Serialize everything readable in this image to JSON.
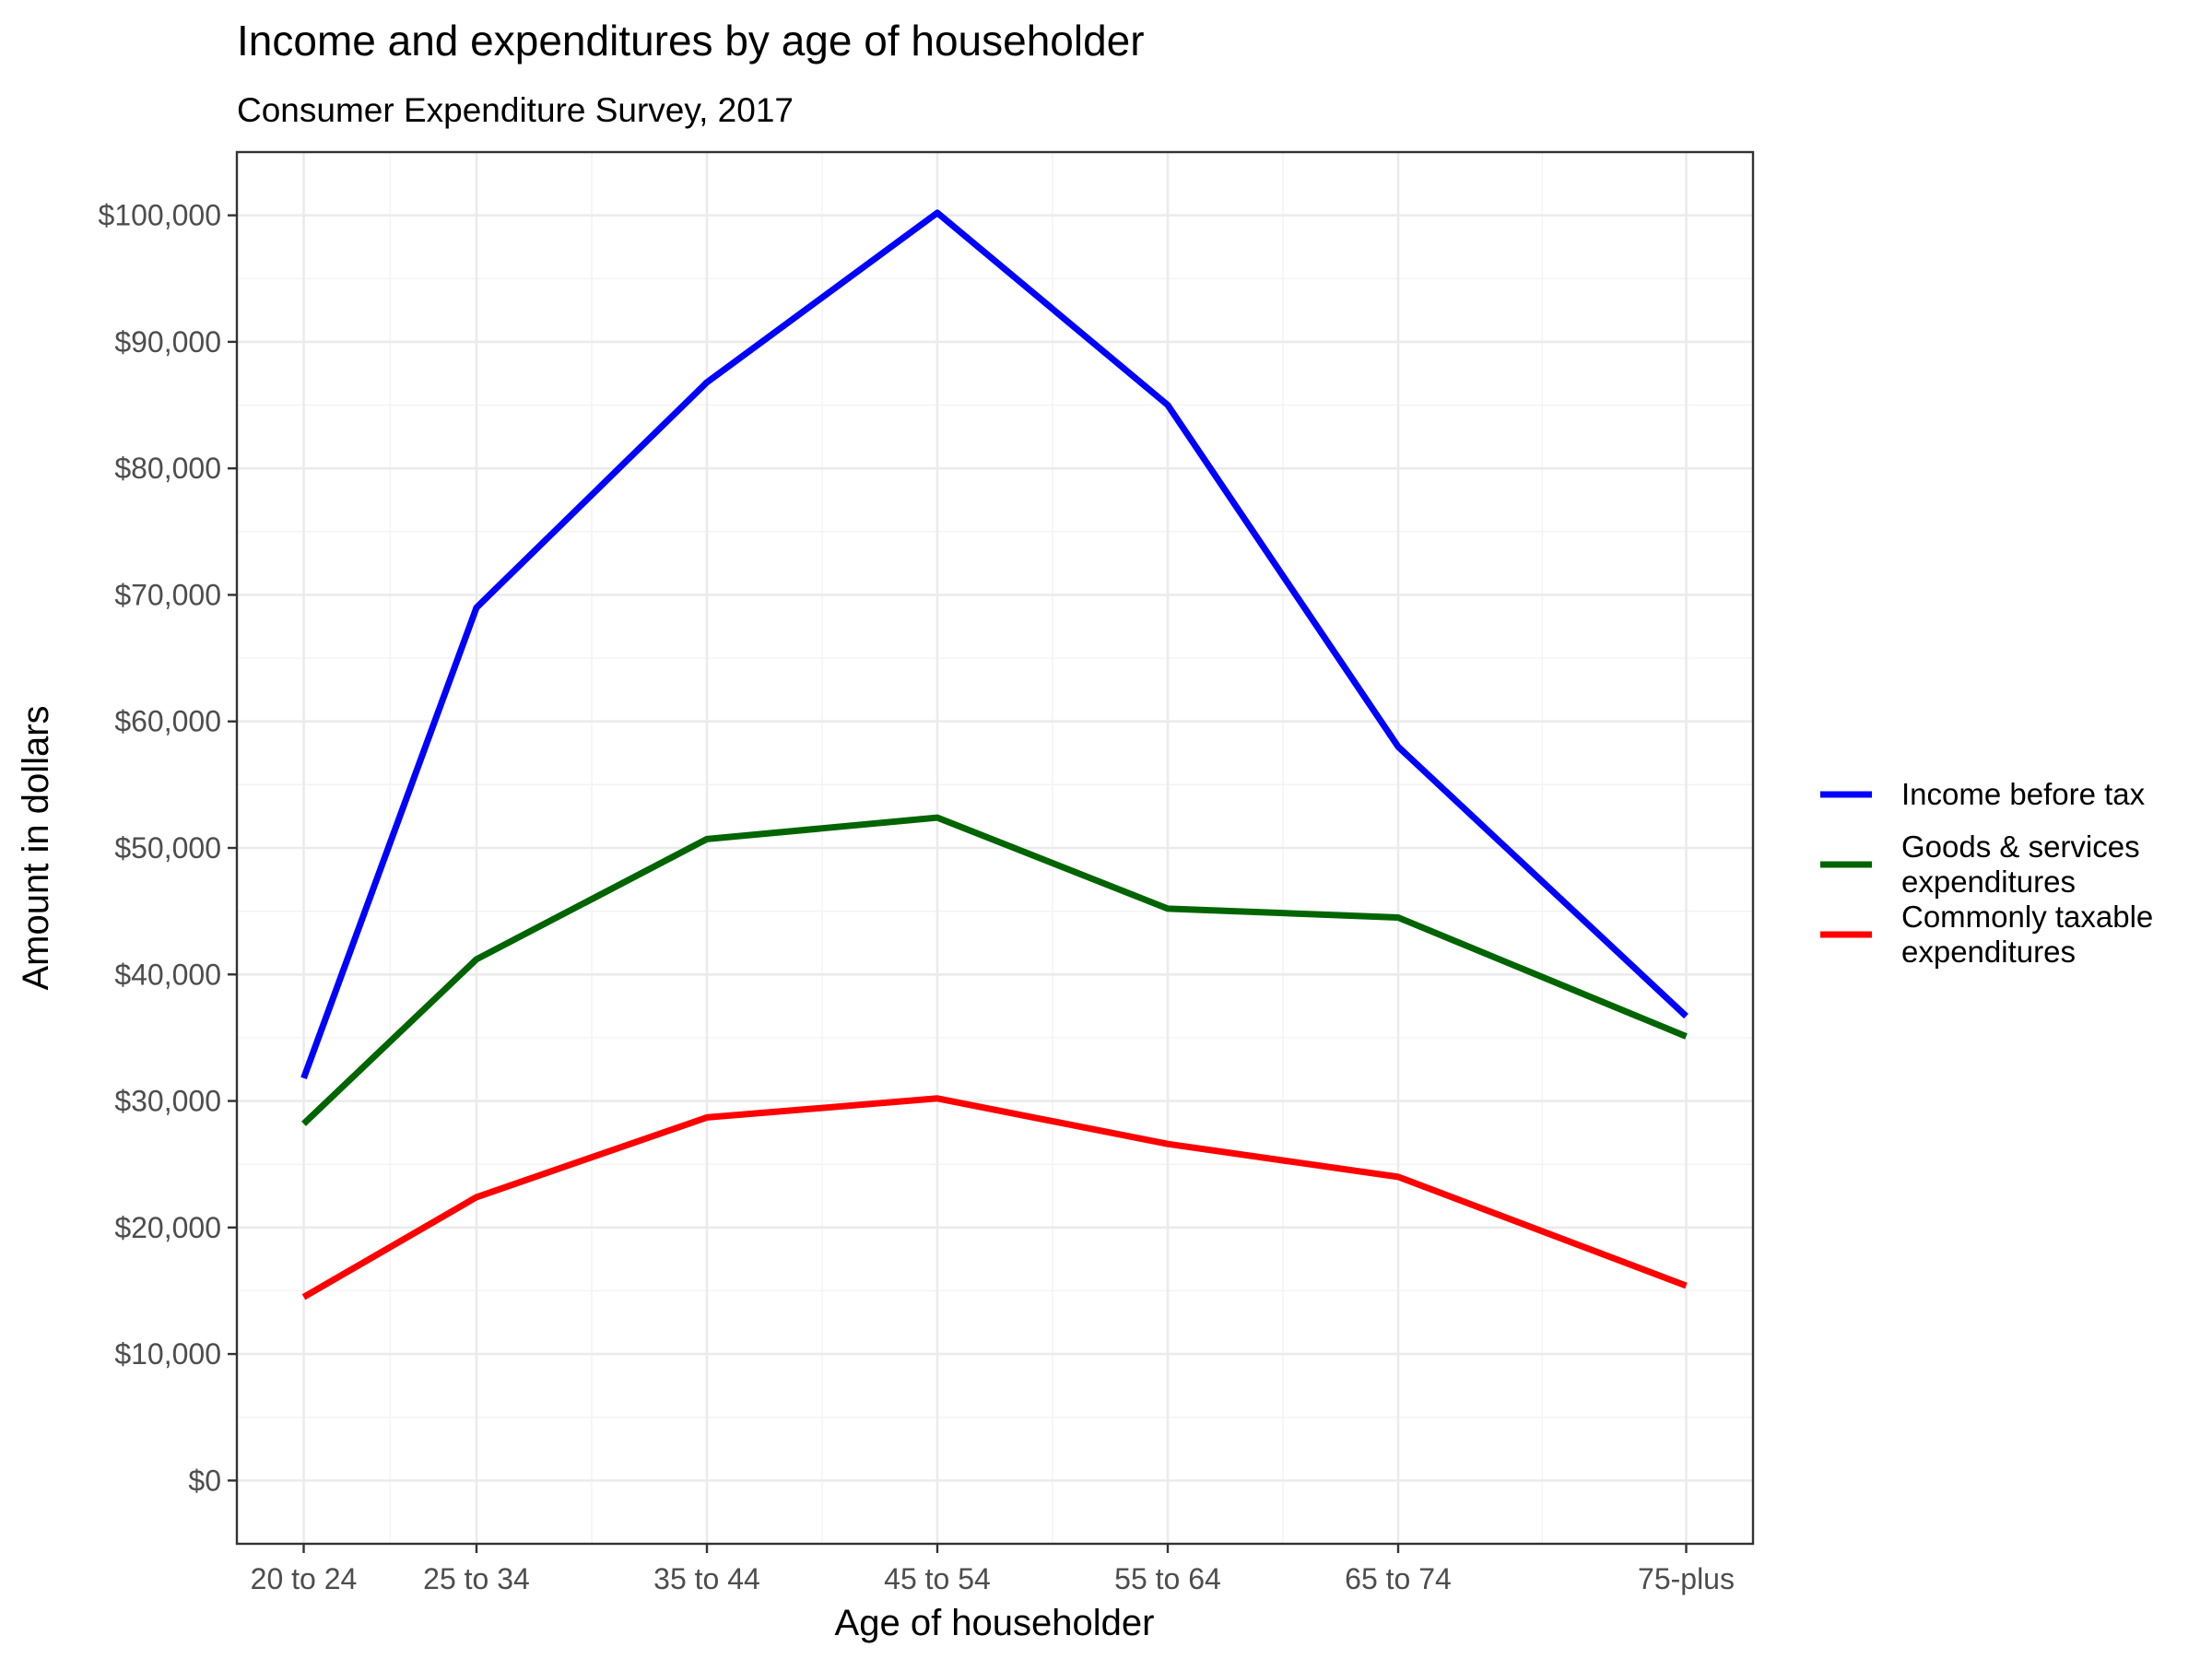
{
  "chart_data": {
    "type": "line",
    "title": "Income and expenditures by age of householder",
    "subtitle": "Consumer Expenditure Survey, 2017",
    "xlabel": "Age of householder",
    "ylabel": "Amount in dollars",
    "categories": [
      "20 to 24",
      "25 to 34",
      "35 to 44",
      "45 to 54",
      "55 to 64",
      "65 to 74",
      "75-plus"
    ],
    "x_positions": [
      22,
      29.5,
      39.5,
      49.5,
      59.5,
      69.5,
      82
    ],
    "x_range": [
      19.1,
      84.9
    ],
    "ylim": [
      -5000,
      105000
    ],
    "y_ticks": [
      0,
      10000,
      20000,
      30000,
      40000,
      50000,
      60000,
      70000,
      80000,
      90000,
      100000
    ],
    "y_tick_labels": [
      "$0",
      "$10,000",
      "$20,000",
      "$30,000",
      "$40,000",
      "$50,000",
      "$60,000",
      "$70,000",
      "$80,000",
      "$90,000",
      "$100,000"
    ],
    "grid": true,
    "legend_position": "right",
    "series": [
      {
        "name": "Income before tax",
        "color": "#0000ff",
        "label_lines": [
          "Income before tax"
        ],
        "values": [
          31800,
          69000,
          86800,
          100200,
          85000,
          58000,
          36700
        ]
      },
      {
        "name": "Goods & services expenditures",
        "color": "#006400",
        "label_lines": [
          "Goods & services",
          "expenditures"
        ],
        "values": [
          28200,
          41200,
          50700,
          52400,
          45200,
          44500,
          35100
        ]
      },
      {
        "name": "Commonly taxable expenditures",
        "color": "#ff0000",
        "label_lines": [
          "Commonly taxable",
          "expenditures"
        ],
        "values": [
          14500,
          22400,
          28700,
          30200,
          26600,
          24000,
          15400
        ]
      }
    ]
  }
}
